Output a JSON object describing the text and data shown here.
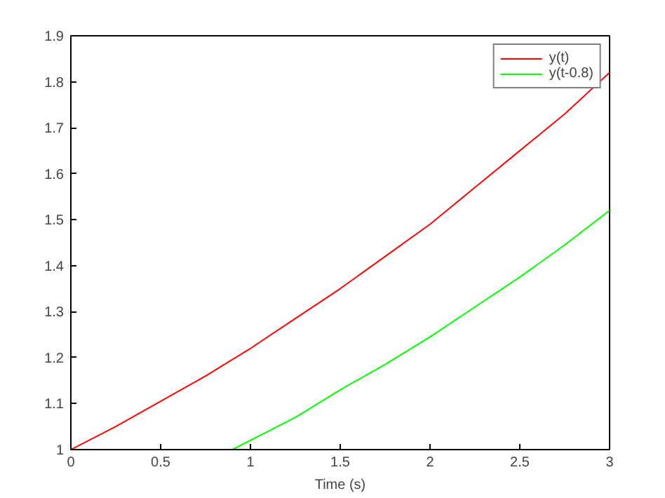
{
  "chart_data": {
    "type": "line",
    "xlabel": "Time (s)",
    "xlim": [
      0,
      3
    ],
    "xticks": [
      0,
      0.5,
      1,
      1.5,
      2,
      2.5,
      3
    ],
    "ylim": [
      1,
      1.9
    ],
    "yticks": [
      1,
      1.1,
      1.2,
      1.3,
      1.4,
      1.5,
      1.6,
      1.7,
      1.8,
      1.9
    ],
    "grid": false,
    "legend": "top right",
    "line_style": "solid",
    "marker": "none",
    "series": [
      {
        "name": "y(t)",
        "color": "#ff0000",
        "x": [
          0,
          0.25,
          0.5,
          0.75,
          1,
          1.25,
          1.5,
          1.75,
          2,
          2.25,
          2.5,
          2.75,
          3
        ],
        "values": [
          1.0,
          1.05,
          1.105,
          1.16,
          1.22,
          1.285,
          1.35,
          1.42,
          1.49,
          1.57,
          1.65,
          1.73,
          1.82
        ]
      },
      {
        "name": "y(t-0.8)",
        "color": "#00ff00",
        "x": [
          0.9,
          1.25,
          1.5,
          1.75,
          2,
          2.25,
          2.5,
          2.75,
          3
        ],
        "values": [
          1.0,
          1.07,
          1.13,
          1.185,
          1.245,
          1.31,
          1.375,
          1.445,
          1.52
        ]
      }
    ]
  }
}
